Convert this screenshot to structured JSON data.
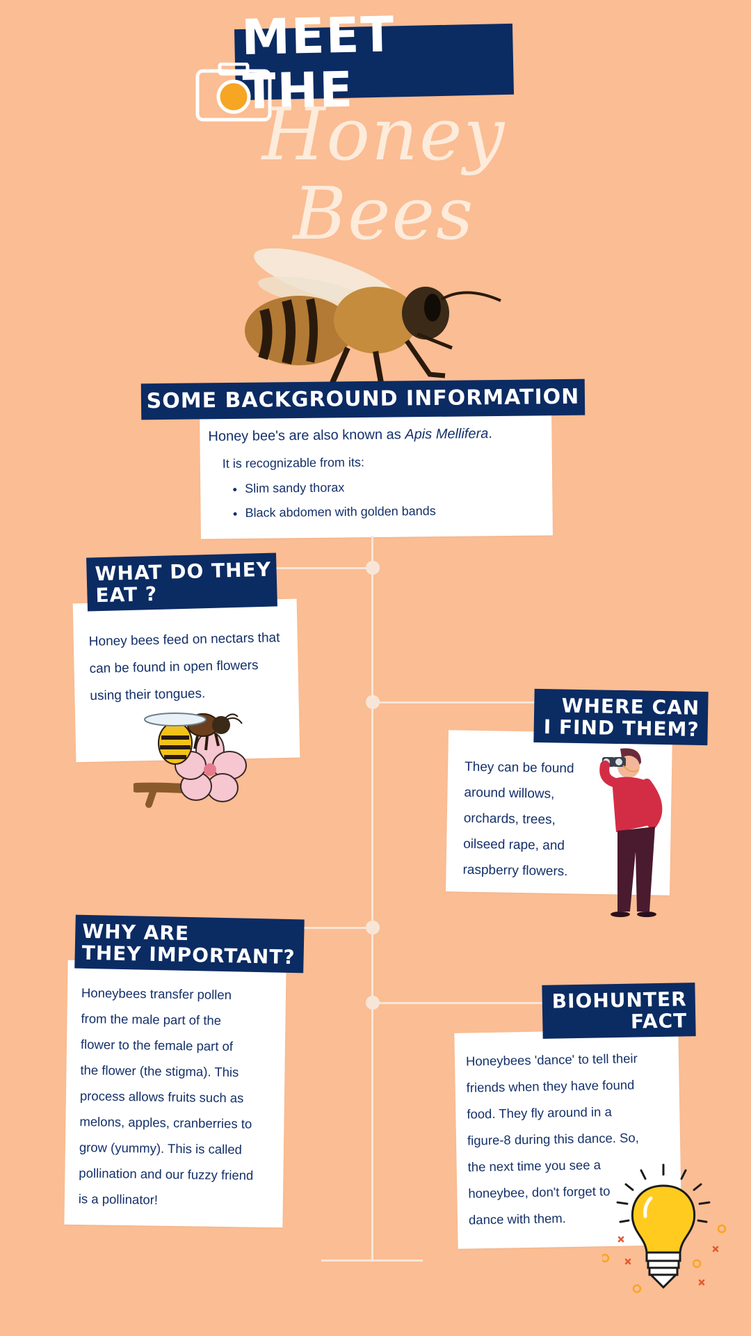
{
  "header": {
    "title_line1": "MEET THE",
    "title_line2": "Honey Bees"
  },
  "background": {
    "heading": "SOME BACKGROUND INFORMATION",
    "intro_prefix": "Honey bee's are also known as ",
    "intro_italic": "Apis Mellifera",
    "intro_suffix": ".",
    "recognizable": "It is recognizable from its:",
    "bullets": [
      "Slim sandy thorax",
      "Black abdomen with golden bands"
    ]
  },
  "eat": {
    "heading_line1": "WHAT DO THEY",
    "heading_line2": "EAT ?",
    "lines": [
      "Honey bees feed on nectars that",
      "can be found in open flowers",
      "using their tongues."
    ]
  },
  "find": {
    "heading_line1": "WHERE CAN",
    "heading_line2": "I FIND THEM?",
    "lines": [
      "They can be found",
      "around willows,",
      "orchards, trees,",
      "oilseed rape, and",
      "raspberry flowers."
    ]
  },
  "important": {
    "heading_line1": "WHY ARE",
    "heading_line2": "THEY IMPORTANT?",
    "lines": [
      "Honeybees transfer pollen",
      "from the male part of the",
      "flower to the female part of",
      "the flower (the stigma). This",
      "process allows fruits such as",
      "melons, apples, cranberries to",
      "grow (yummy). This is called",
      "pollination and our fuzzy friend",
      "is a pollinator!"
    ]
  },
  "fact": {
    "heading_line1": "BIOHUNTER",
    "heading_line2": "FACT",
    "lines": [
      "Honeybees 'dance' to tell their",
      "friends when they have found",
      "food.  They fly around in a",
      "figure-8 during this dance. So,",
      "the next time you see a",
      "honeybee, don't forget to",
      "dance with them."
    ]
  },
  "icons": {
    "camera": "camera-icon",
    "bee_photo": "bee-photo",
    "bee_flower": "bee-on-flower-illustration",
    "binoculars_person": "person-with-binoculars-illustration",
    "lightbulb": "lightbulb-icon"
  },
  "colors": {
    "background": "#FBBD93",
    "navy": "#0B2B63",
    "card": "#FFFFFF",
    "timeline": "#F7E6D8",
    "accent_yellow": "#F6A623"
  }
}
